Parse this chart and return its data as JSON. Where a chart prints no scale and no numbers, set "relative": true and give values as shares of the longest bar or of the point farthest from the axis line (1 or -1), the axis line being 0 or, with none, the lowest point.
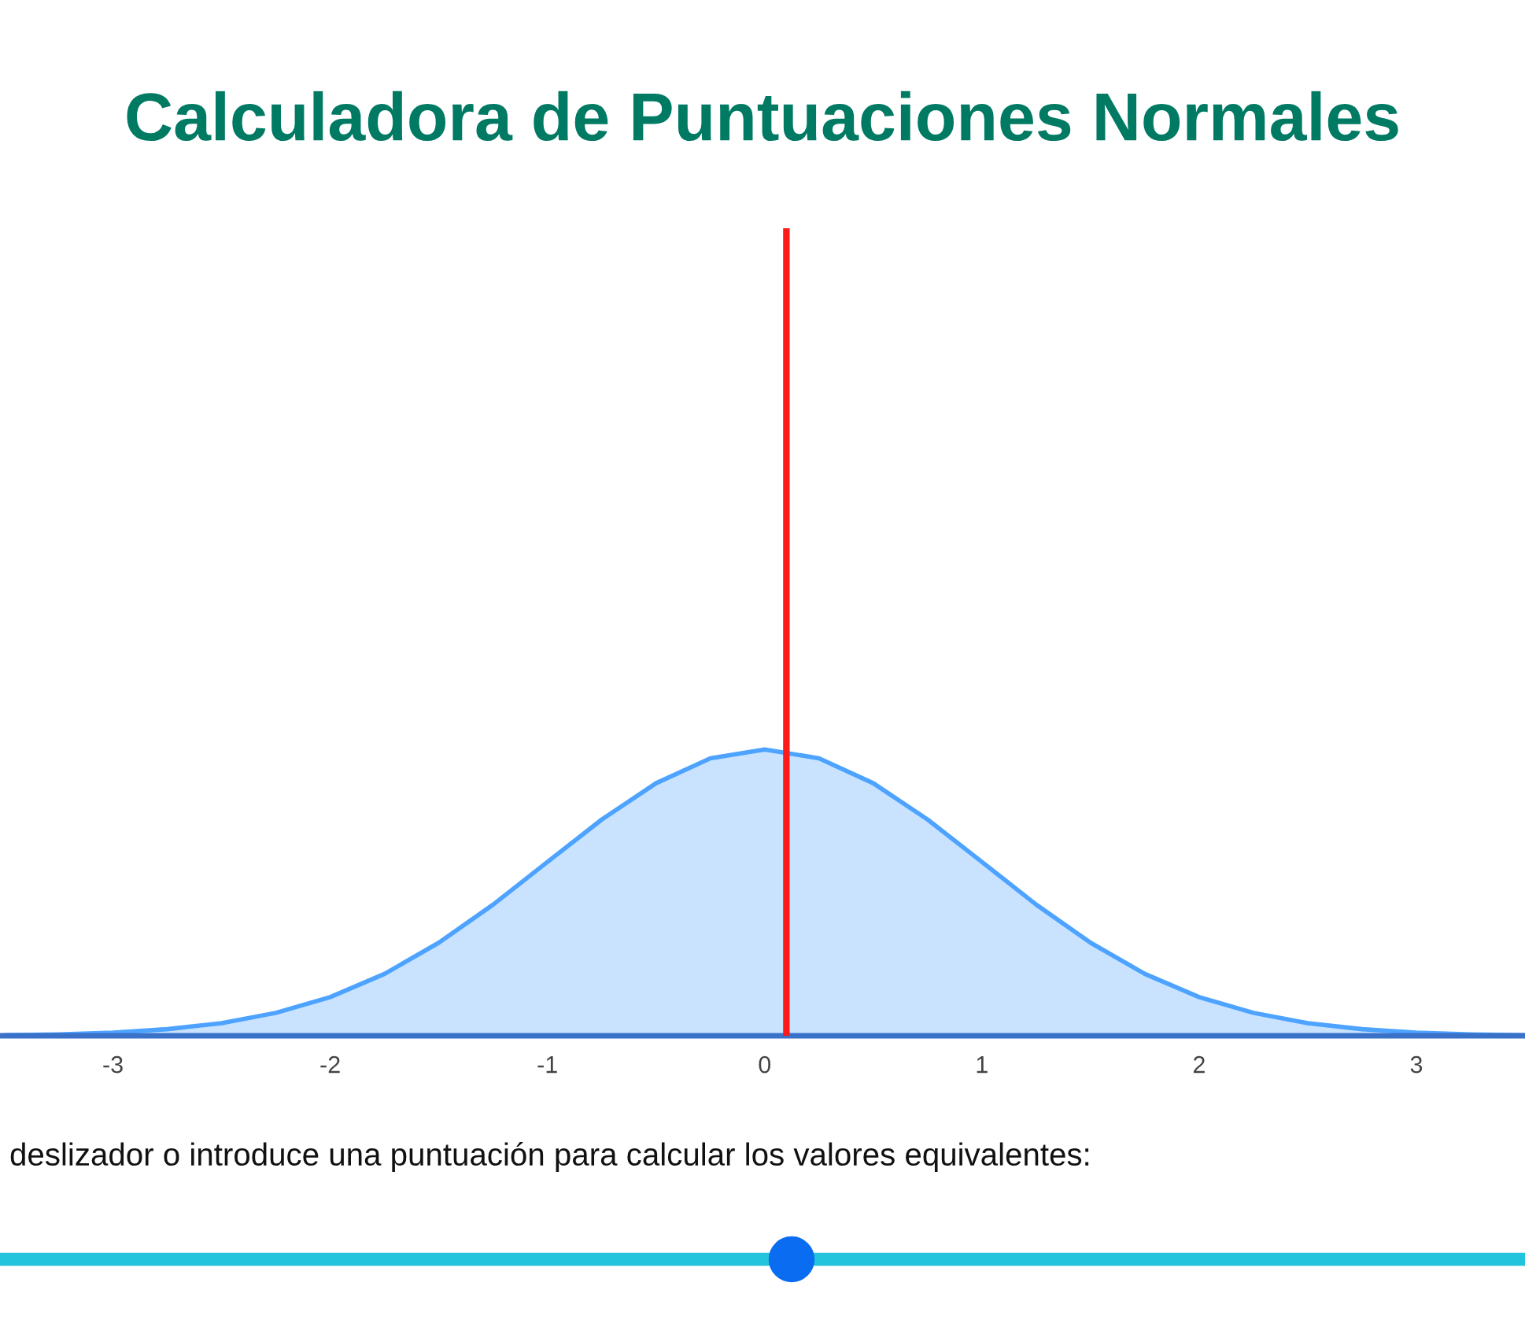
{
  "chart_data": {
    "type": "area",
    "title": "Calculadora de Puntuaciones Normales",
    "relative": true,
    "x": [
      -3.5,
      -3.25,
      -3,
      -2.75,
      -2.5,
      -2.25,
      -2,
      -1.75,
      -1.5,
      -1.25,
      -1,
      -0.75,
      -0.5,
      -0.25,
      0,
      0.25,
      0.5,
      0.75,
      1,
      1.25,
      1.5,
      1.75,
      2,
      2.25,
      2.5,
      2.75,
      3,
      3.25,
      3.5
    ],
    "series": [
      {
        "color": "#4da3ff",
        "values": [
          0.002,
          0.005,
          0.011,
          0.023,
          0.044,
          0.08,
          0.135,
          0.216,
          0.325,
          0.458,
          0.607,
          0.755,
          0.882,
          0.969,
          1,
          0.969,
          0.882,
          0.755,
          0.607,
          0.458,
          0.325,
          0.216,
          0.135,
          0.08,
          0.044,
          0.023,
          0.011,
          0.005,
          0.002
        ]
      }
    ],
    "xlim": [
      -3.52,
      3.5
    ],
    "xticks": [
      -3,
      -2,
      -1,
      0,
      1,
      2,
      3
    ],
    "ref_lines": [
      {
        "axis": "x",
        "value": 0.1,
        "color": "#ff1a1a"
      }
    ],
    "annotations": [
      "deslizador o introduce una puntuación para calcular los valores equivalentes:"
    ],
    "grid": false,
    "legend": false
  }
}
